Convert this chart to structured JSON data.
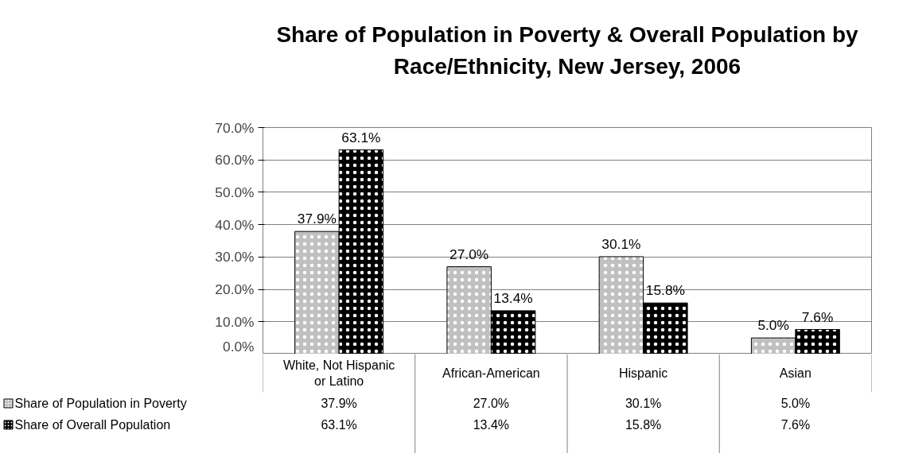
{
  "chart_data": {
    "type": "bar",
    "title": "Share of Population in Poverty & Overall Population by Race/Ethnicity, New Jersey, 2006",
    "categories": [
      "White, Not Hispanic or Latino",
      "African-American",
      "Hispanic",
      "Asian"
    ],
    "series": [
      {
        "name": "Share of Population in Poverty",
        "color": "#c0c0c0",
        "values": [
          37.9,
          27.0,
          30.1,
          5.0
        ],
        "value_labels": [
          "37.9%",
          "27.0%",
          "30.1%",
          "5.0%"
        ]
      },
      {
        "name": "Share of Overall Population",
        "color": "#000000",
        "values": [
          63.1,
          13.4,
          15.8,
          7.6
        ],
        "value_labels": [
          "63.1%",
          "13.4%",
          "15.8%",
          "7.6%"
        ]
      }
    ],
    "ylim": [
      0,
      70
    ],
    "yticks": [
      {
        "value": 0,
        "label": "0.0%"
      },
      {
        "value": 10,
        "label": "10.0%"
      },
      {
        "value": 20,
        "label": "20.0%"
      },
      {
        "value": 30,
        "label": "30.0%"
      },
      {
        "value": 40,
        "label": "40.0%"
      },
      {
        "value": 50,
        "label": "50.0%"
      },
      {
        "value": 60,
        "label": "60.0%"
      },
      {
        "value": 70,
        "label": "70.0%"
      }
    ],
    "grid": "y",
    "legend": "bottom"
  }
}
